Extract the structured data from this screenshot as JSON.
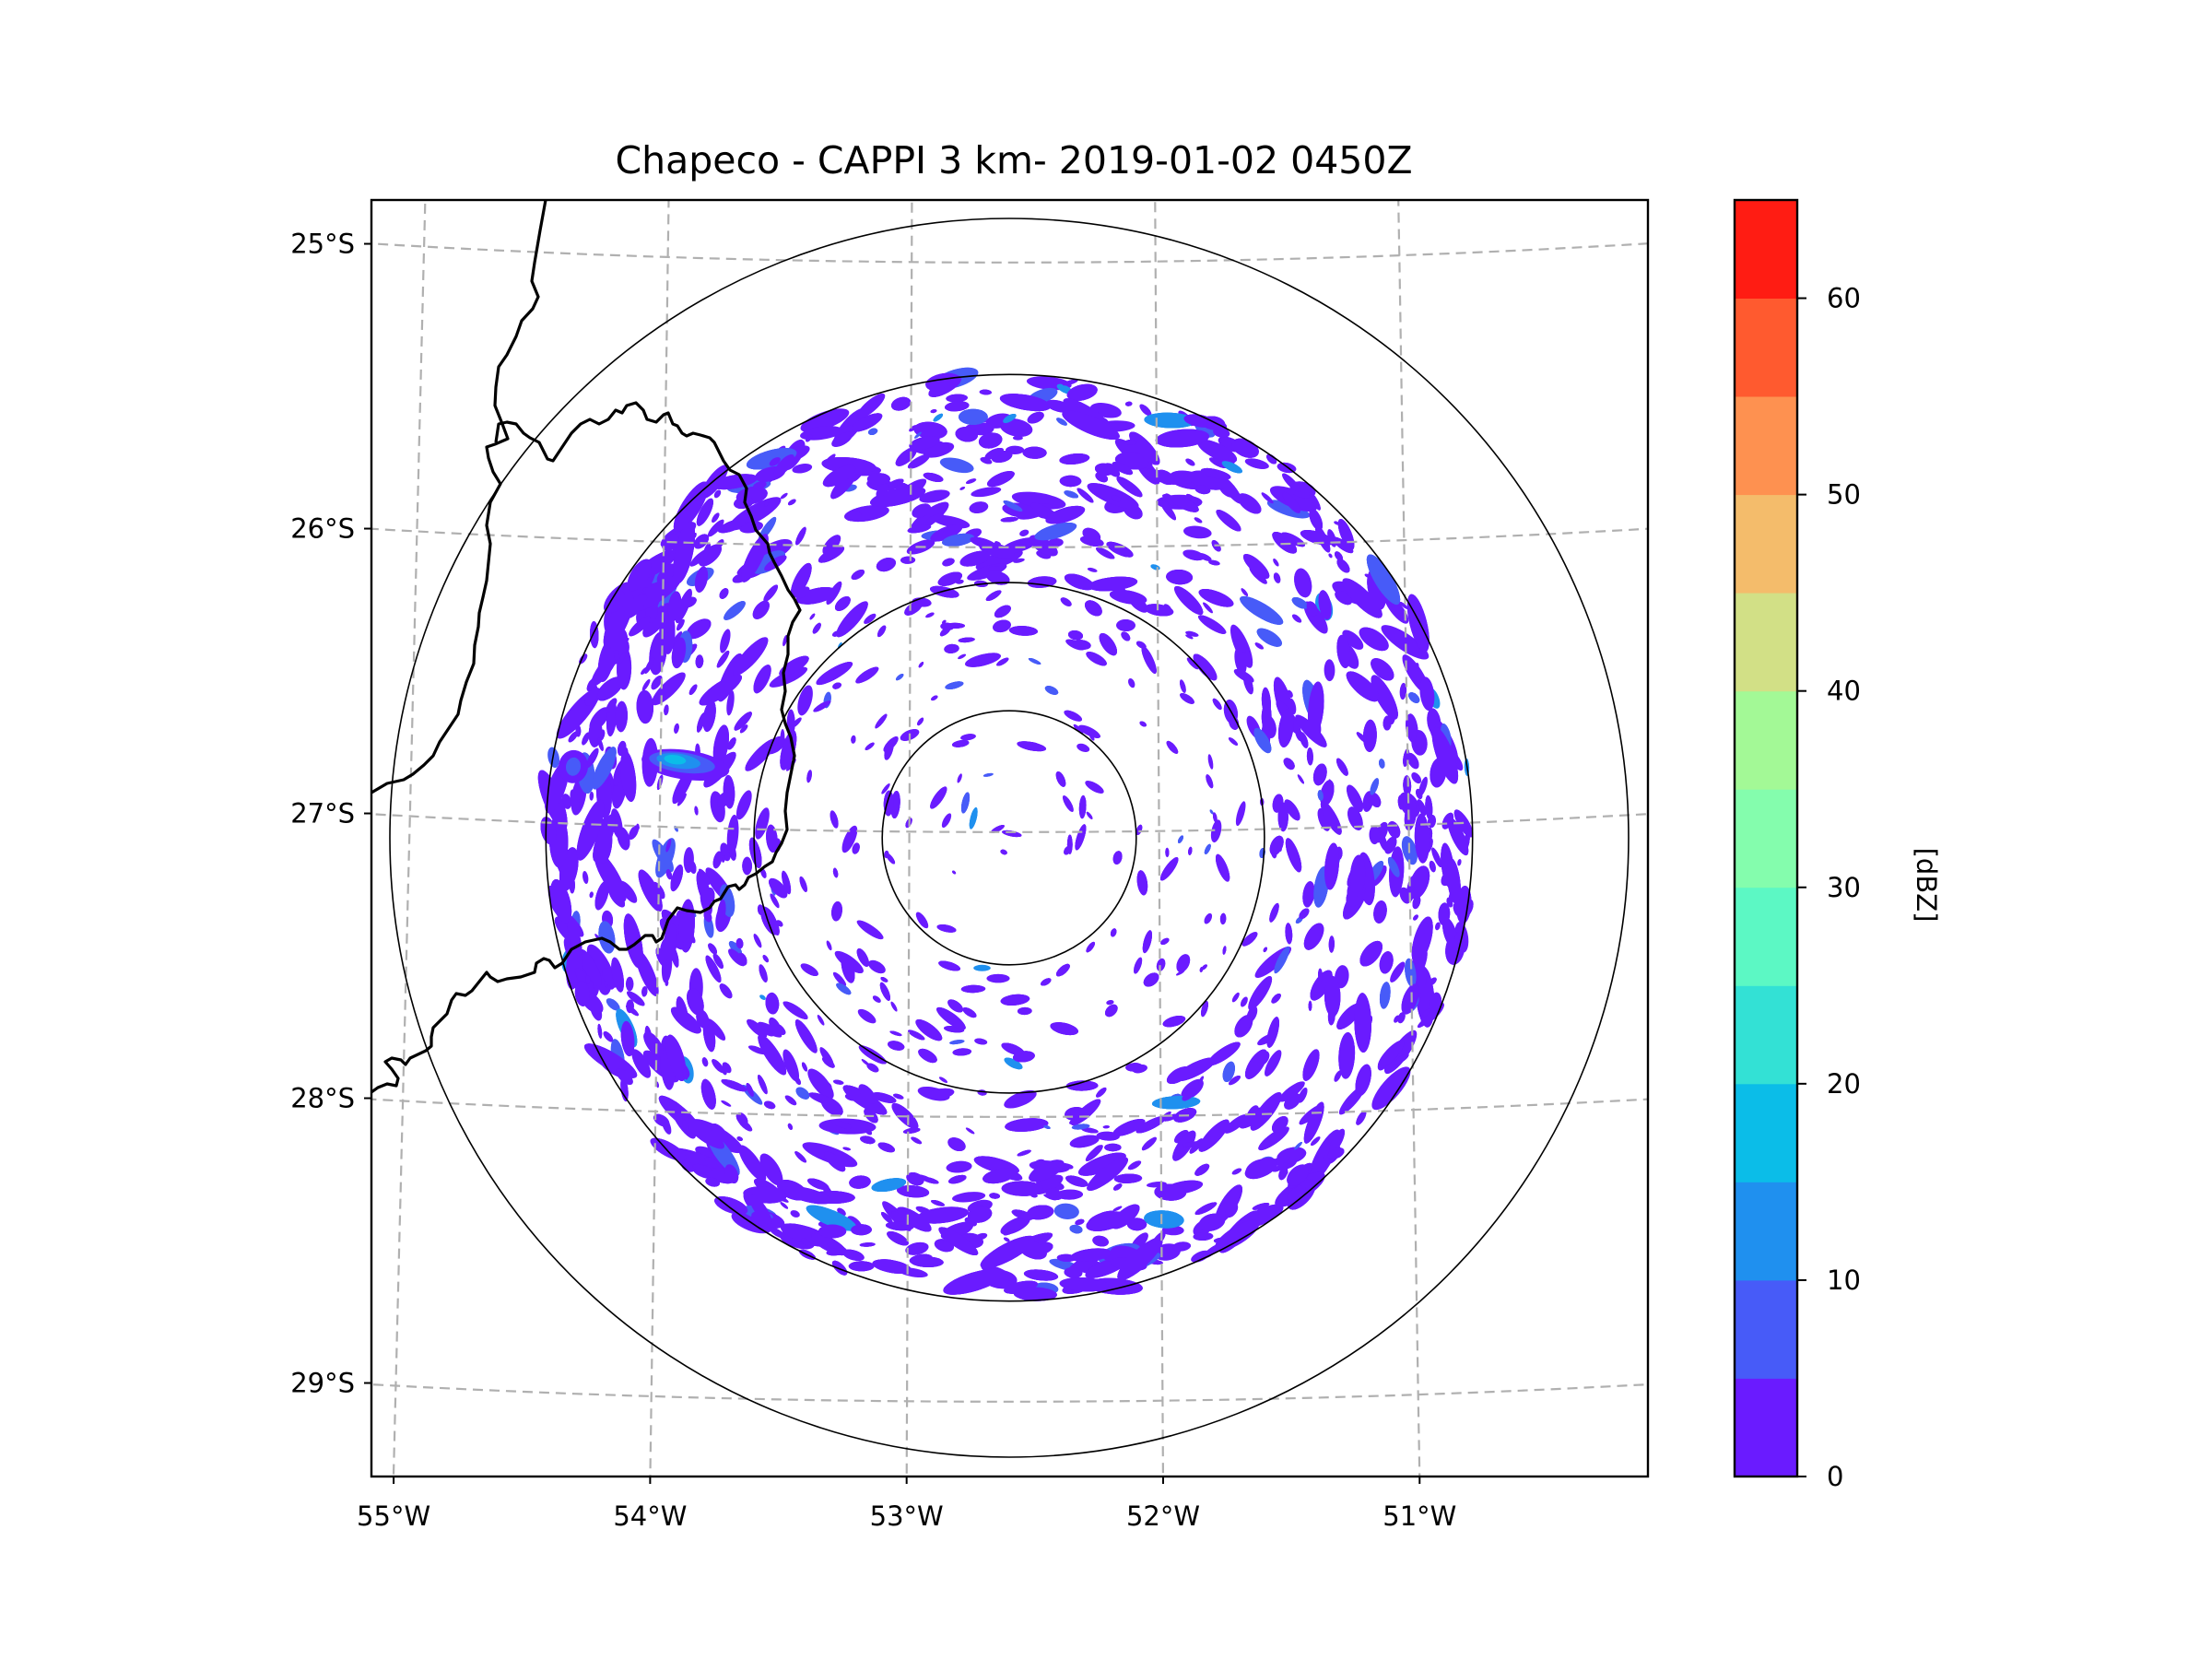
{
  "chart_data": {
    "type": "heatmap",
    "subtype": "radar-ppi-map",
    "title": "Chapeco - CAPPI 3 km- 2019-01-02 0450Z",
    "station": "Chapeco",
    "product": "CAPPI 3 km",
    "datetime": "2019-01-02 0450Z",
    "xlabel": "",
    "ylabel": "",
    "lon_ticks": [
      "55°W",
      "54°W",
      "53°W",
      "52°W",
      "51°W"
    ],
    "lat_ticks": [
      "25°S",
      "26°S",
      "27°S",
      "28°S",
      "29°S"
    ],
    "lon_range": [
      -55.2,
      -50.1
    ],
    "lat_range": [
      -24.8,
      -29.3
    ],
    "radar_center": {
      "lon": -52.6,
      "lat": -27.02
    },
    "range_rings": 4,
    "grid": true,
    "colorbar": {
      "label": "[dBZ]",
      "ticks": [
        "0",
        "10",
        "20",
        "30",
        "40",
        "50",
        "60"
      ],
      "range": [
        0,
        65
      ],
      "step": 5,
      "colors": [
        "#6a1bff",
        "#475bf8",
        "#1f90ef",
        "#0bbde8",
        "#33e1d5",
        "#5cf8c4",
        "#84fdad",
        "#a3f996",
        "#d2e086",
        "#f4bc6b",
        "#fe9150",
        "#ff5a2f",
        "#ff1c13"
      ]
    },
    "echo_summary": {
      "dominant_reflectivity_dbz": [
        0,
        5
      ],
      "max_cell": {
        "lon": -53.9,
        "lat": -26.78,
        "max_dbz": 20,
        "note": "isolated cell west of radar near border"
      },
      "secondary_cell": {
        "lon": -54.35,
        "lat": -26.8,
        "max_dbz": 10
      }
    },
    "legend": "right"
  }
}
